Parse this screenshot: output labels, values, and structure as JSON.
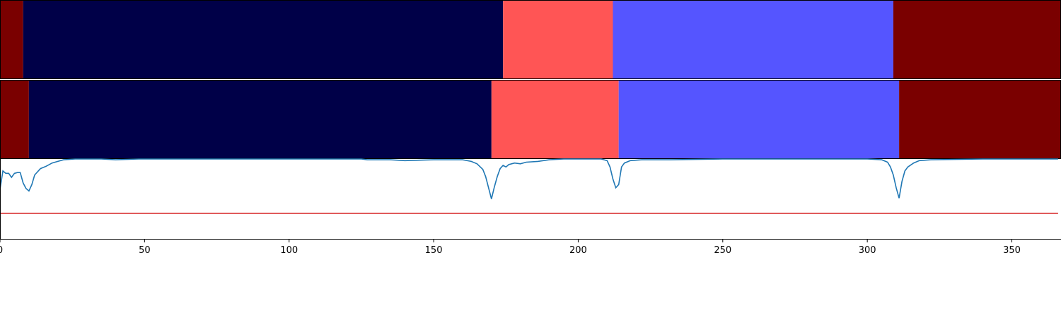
{
  "chart_data": [
    {
      "type": "heatmap",
      "xlim": [
        0,
        367
      ],
      "segments": [
        {
          "start": 0,
          "end": 8,
          "color": "#7a0000"
        },
        {
          "start": 8,
          "end": 174,
          "color": "#000048"
        },
        {
          "start": 174,
          "end": 212,
          "color": "#ff5555"
        },
        {
          "start": 212,
          "end": 309,
          "color": "#5555ff"
        },
        {
          "start": 309,
          "end": 367,
          "color": "#7a0000"
        }
      ]
    },
    {
      "type": "heatmap",
      "xlim": [
        0,
        367
      ],
      "segments": [
        {
          "start": 0,
          "end": 10,
          "color": "#7a0000"
        },
        {
          "start": 10,
          "end": 170,
          "color": "#000048"
        },
        {
          "start": 170,
          "end": 214,
          "color": "#ff5555"
        },
        {
          "start": 214,
          "end": 311,
          "color": "#5555ff"
        },
        {
          "start": 311,
          "end": 367,
          "color": "#7a0000"
        }
      ]
    },
    {
      "type": "line",
      "xlim": [
        0,
        367
      ],
      "ylim": [
        0,
        1
      ],
      "xticks": [
        0,
        50,
        100,
        150,
        200,
        250,
        300,
        350
      ],
      "series": [
        {
          "color": "#1f77b4",
          "points": [
            [
              0,
              0.62
            ],
            [
              1,
              0.85
            ],
            [
              2,
              0.82
            ],
            [
              3,
              0.82
            ],
            [
              4,
              0.77
            ],
            [
              5,
              0.82
            ],
            [
              6,
              0.83
            ],
            [
              7,
              0.83
            ],
            [
              8,
              0.7
            ],
            [
              9,
              0.63
            ],
            [
              10,
              0.6
            ],
            [
              11,
              0.68
            ],
            [
              12,
              0.8
            ],
            [
              14,
              0.88
            ],
            [
              16,
              0.91
            ],
            [
              18,
              0.95
            ],
            [
              20,
              0.97
            ],
            [
              22,
              0.99
            ],
            [
              26,
              1.0
            ],
            [
              35,
              1.0
            ],
            [
              40,
              0.99
            ],
            [
              48,
              1.0
            ],
            [
              100,
              1.0
            ],
            [
              125,
              1.0
            ],
            [
              127,
              0.99
            ],
            [
              135,
              0.99
            ],
            [
              140,
              0.98
            ],
            [
              150,
              0.99
            ],
            [
              160,
              0.99
            ],
            [
              163,
              0.97
            ],
            [
              165,
              0.94
            ],
            [
              167,
              0.87
            ],
            [
              168,
              0.78
            ],
            [
              169,
              0.64
            ],
            [
              170,
              0.5
            ],
            [
              171,
              0.65
            ],
            [
              172,
              0.78
            ],
            [
              173,
              0.88
            ],
            [
              174,
              0.92
            ],
            [
              175,
              0.9
            ],
            [
              176,
              0.93
            ],
            [
              178,
              0.95
            ],
            [
              180,
              0.94
            ],
            [
              182,
              0.96
            ],
            [
              186,
              0.97
            ],
            [
              190,
              0.99
            ],
            [
              195,
              1.0
            ],
            [
              208,
              1.0
            ],
            [
              210,
              0.98
            ],
            [
              211,
              0.9
            ],
            [
              212,
              0.75
            ],
            [
              213,
              0.64
            ],
            [
              214,
              0.68
            ],
            [
              215,
              0.9
            ],
            [
              216,
              0.95
            ],
            [
              218,
              0.98
            ],
            [
              222,
              0.99
            ],
            [
              232,
              0.99
            ],
            [
              250,
              1.0
            ],
            [
              300,
              1.0
            ],
            [
              305,
              0.99
            ],
            [
              307,
              0.96
            ],
            [
              308,
              0.9
            ],
            [
              309,
              0.8
            ],
            [
              310,
              0.64
            ],
            [
              311,
              0.51
            ],
            [
              312,
              0.72
            ],
            [
              313,
              0.85
            ],
            [
              314,
              0.9
            ],
            [
              316,
              0.95
            ],
            [
              318,
              0.98
            ],
            [
              322,
              0.99
            ],
            [
              340,
              1.0
            ],
            [
              366,
              1.0
            ]
          ]
        },
        {
          "color": "#d62728",
          "points": [
            [
              0,
              0.32
            ],
            [
              366,
              0.32
            ]
          ]
        }
      ]
    }
  ]
}
